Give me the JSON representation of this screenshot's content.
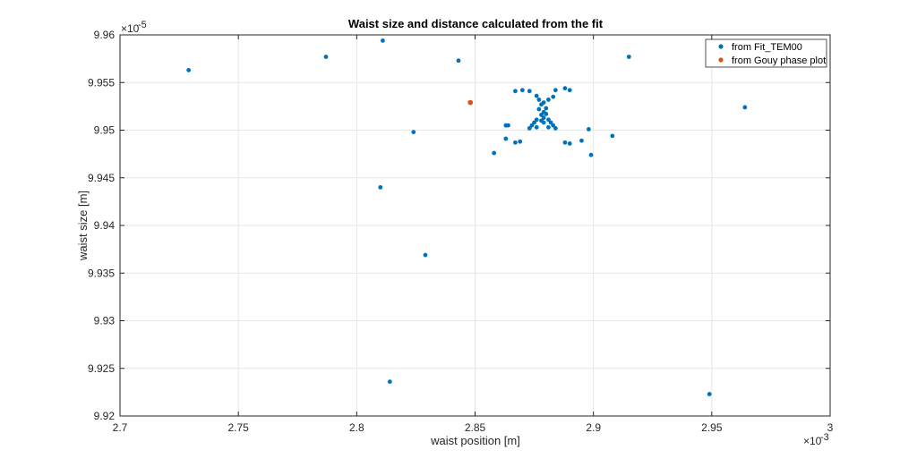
{
  "chart_data": {
    "type": "scatter",
    "title": "Waist size and distance calculated from the fit",
    "xlabel": "waist position [m]",
    "ylabel": "waist size [m]",
    "x_multiplier_label": "×10",
    "x_exponent": "-3",
    "y_multiplier_label": "×10",
    "y_exponent": "-5",
    "xlim": [
      2.7,
      3.0
    ],
    "ylim": [
      9.92,
      9.96
    ],
    "x_ticks": [
      "2.7",
      "2.75",
      "2.8",
      "2.85",
      "2.9",
      "2.95",
      "3"
    ],
    "y_ticks": [
      "9.92",
      "9.925",
      "9.93",
      "9.935",
      "9.94",
      "9.945",
      "9.95",
      "9.955",
      "9.96"
    ],
    "grid": true,
    "legend_position": "top-right",
    "series": [
      {
        "name": "from Fit_TEM00",
        "color": "#0072BD",
        "points": [
          [
            2.729,
            9.9563
          ],
          [
            2.787,
            9.9577
          ],
          [
            2.811,
            9.9594
          ],
          [
            2.843,
            9.9573
          ],
          [
            2.915,
            9.9577
          ],
          [
            2.964,
            9.9524
          ],
          [
            2.824,
            9.9498
          ],
          [
            2.81,
            9.944
          ],
          [
            2.829,
            9.9369
          ],
          [
            2.814,
            9.9236
          ],
          [
            2.949,
            9.9223
          ],
          [
            2.858,
            9.9476
          ],
          [
            2.863,
            9.9491
          ],
          [
            2.867,
            9.9487
          ],
          [
            2.869,
            9.9488
          ],
          [
            2.888,
            9.9487
          ],
          [
            2.89,
            9.9486
          ],
          [
            2.895,
            9.9489
          ],
          [
            2.899,
            9.9474
          ],
          [
            2.908,
            9.9494
          ],
          [
            2.898,
            9.9501
          ],
          [
            2.867,
            9.9541
          ],
          [
            2.87,
            9.9542
          ],
          [
            2.873,
            9.9541
          ],
          [
            2.876,
            9.9536
          ],
          [
            2.884,
            9.9542
          ],
          [
            2.888,
            9.9544
          ],
          [
            2.89,
            9.9542
          ],
          [
            2.863,
            9.9505
          ],
          [
            2.864,
            9.9505
          ],
          [
            2.877,
            9.9532
          ],
          [
            2.879,
            9.9529
          ],
          [
            2.881,
            9.9532
          ],
          [
            2.883,
            9.9535
          ],
          [
            2.878,
            9.9527
          ],
          [
            2.88,
            9.9523
          ],
          [
            2.877,
            9.9522
          ],
          [
            2.879,
            9.9519
          ],
          [
            2.878,
            9.9516
          ],
          [
            2.879,
            9.9513
          ],
          [
            2.88,
            9.9517
          ],
          [
            2.876,
            9.9511
          ],
          [
            2.881,
            9.9511
          ],
          [
            2.875,
            9.9508
          ],
          [
            2.882,
            9.9508
          ],
          [
            2.874,
            9.9505
          ],
          [
            2.883,
            9.9505
          ],
          [
            2.873,
            9.9502
          ],
          [
            2.884,
            9.9502
          ],
          [
            2.876,
            9.9503
          ],
          [
            2.881,
            9.9503
          ],
          [
            2.878,
            9.951
          ],
          [
            2.879,
            9.9508
          ]
        ]
      },
      {
        "name": "from Gouy phase plot",
        "color": "#D95319",
        "points": [
          [
            2.848,
            9.9529
          ]
        ]
      }
    ]
  }
}
